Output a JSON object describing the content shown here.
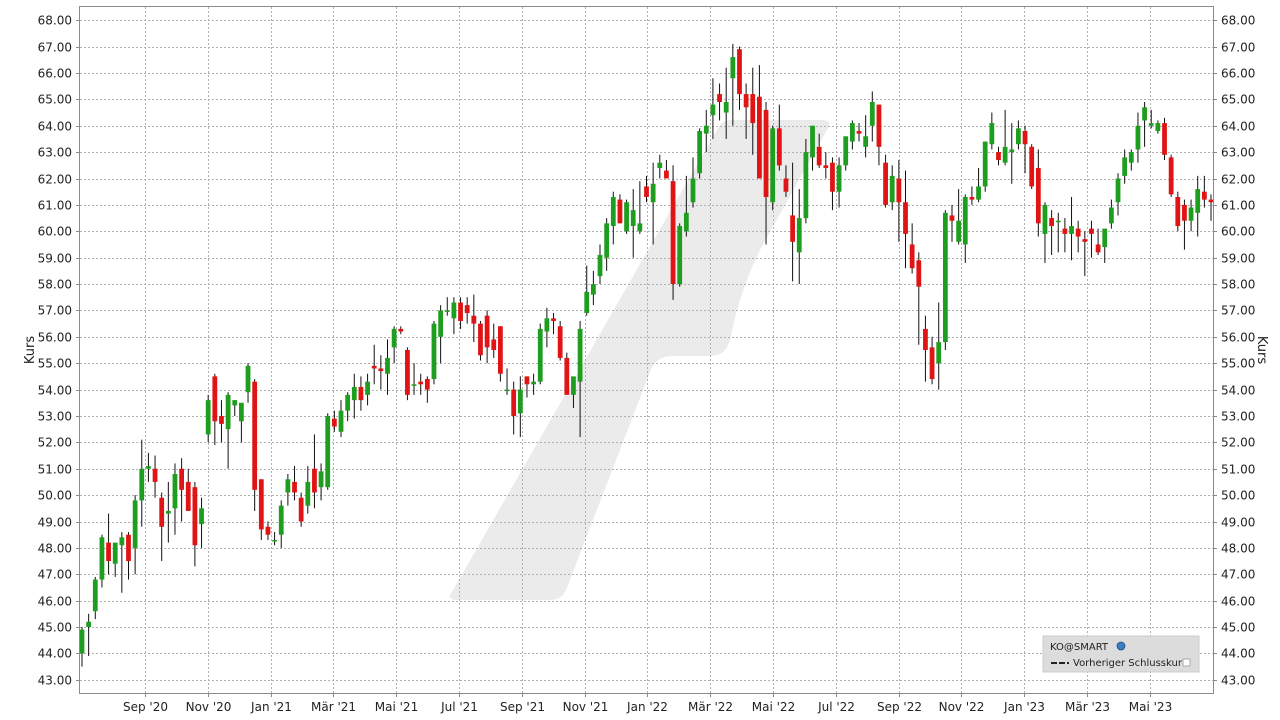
{
  "chart_data": {
    "type": "candlestick",
    "ylabel": "Kurs",
    "ylim": [
      42.5,
      68.5
    ],
    "y_ticks": [
      "43.00",
      "44.00",
      "45.00",
      "46.00",
      "47.00",
      "48.00",
      "49.00",
      "50.00",
      "51.00",
      "52.00",
      "53.00",
      "54.00",
      "55.00",
      "56.00",
      "57.00",
      "58.00",
      "59.00",
      "60.00",
      "61.00",
      "62.00",
      "63.00",
      "64.00",
      "65.00",
      "66.00",
      "67.00",
      "68.00"
    ],
    "x_ticks": [
      "Sep '20",
      "Nov '20",
      "Jan '21",
      "Mär '21",
      "Mai '21",
      "Jul '21",
      "Sep '21",
      "Nov '21",
      "Jan '22",
      "Mär '22",
      "Mai '22",
      "Jul '22",
      "Sep '22",
      "Nov '22",
      "Jan '23",
      "Mär '23",
      "Mai '23"
    ],
    "grid": true,
    "legend": {
      "position": "bottom-right",
      "symbol": "KO@SMART",
      "prev_close_label": "Vorheriger Schlusskurs"
    },
    "colors": {
      "up": "#1e9e1e",
      "down": "#e01414",
      "wick": "#111111"
    },
    "period": "weekly",
    "series": [
      [
        44.0,
        45.0,
        43.5,
        44.9
      ],
      [
        45.0,
        45.5,
        43.9,
        45.2
      ],
      [
        45.6,
        46.9,
        45.3,
        46.8
      ],
      [
        46.8,
        48.5,
        46.5,
        48.4
      ],
      [
        48.2,
        49.3,
        47.0,
        47.5
      ],
      [
        47.4,
        48.0,
        46.9,
        48.2
      ],
      [
        48.1,
        48.6,
        46.3,
        48.4
      ],
      [
        48.5,
        48.6,
        46.8,
        47.5
      ],
      [
        48.0,
        50.0,
        47.0,
        49.8
      ],
      [
        49.8,
        52.1,
        48.8,
        51.0
      ],
      [
        51.0,
        51.6,
        50.5,
        51.1
      ],
      [
        51.0,
        51.5,
        49.9,
        50.5
      ],
      [
        49.9,
        50.1,
        47.5,
        48.8
      ],
      [
        49.3,
        50.5,
        48.2,
        49.4
      ],
      [
        49.5,
        51.2,
        48.5,
        50.8
      ],
      [
        51.0,
        51.4,
        49.0,
        50.2
      ],
      [
        50.5,
        51.0,
        49.5,
        49.4
      ],
      [
        50.3,
        50.5,
        47.3,
        48.1
      ],
      [
        48.9,
        49.9,
        48.0,
        49.5
      ],
      [
        52.3,
        53.8,
        52.0,
        53.6
      ],
      [
        54.5,
        54.6,
        51.9,
        52.8
      ],
      [
        53.0,
        53.6,
        52.0,
        52.7
      ],
      [
        52.5,
        53.9,
        51.0,
        53.8
      ],
      [
        53.4,
        53.6,
        53.0,
        53.6
      ],
      [
        52.8,
        53.3,
        52.0,
        53.5
      ],
      [
        53.9,
        55.0,
        53.5,
        54.9
      ],
      [
        54.3,
        54.4,
        49.4,
        50.2
      ],
      [
        50.6,
        50.6,
        48.3,
        48.7
      ],
      [
        48.8,
        49.0,
        48.3,
        48.5
      ],
      [
        48.3,
        48.6,
        48.1,
        48.3
      ],
      [
        48.5,
        49.8,
        48.0,
        49.6
      ],
      [
        50.1,
        50.8,
        49.6,
        50.6
      ],
      [
        50.5,
        51.1,
        49.8,
        50.1
      ],
      [
        49.9,
        50.1,
        48.8,
        49.0
      ],
      [
        49.6,
        51.1,
        49.3,
        50.5
      ],
      [
        51.0,
        52.3,
        49.5,
        50.1
      ],
      [
        50.3,
        51.2,
        49.8,
        50.9
      ],
      [
        50.3,
        53.1,
        50.2,
        53.0
      ],
      [
        52.9,
        53.2,
        52.4,
        52.6
      ],
      [
        52.4,
        53.6,
        52.2,
        53.2
      ],
      [
        53.2,
        53.9,
        52.8,
        53.8
      ],
      [
        53.6,
        54.6,
        52.9,
        54.1
      ],
      [
        54.1,
        54.5,
        53.2,
        53.6
      ],
      [
        53.8,
        54.6,
        53.4,
        54.3
      ],
      [
        54.9,
        55.7,
        54.2,
        54.8
      ],
      [
        54.8,
        55.3,
        54.0,
        54.7
      ],
      [
        54.6,
        55.9,
        53.8,
        55.2
      ],
      [
        55.6,
        56.4,
        55.0,
        56.3
      ],
      [
        56.3,
        56.4,
        56.1,
        56.2
      ],
      [
        55.5,
        55.6,
        53.6,
        53.8
      ],
      [
        54.2,
        55.0,
        53.8,
        54.2
      ],
      [
        54.3,
        54.6,
        53.8,
        54.2
      ],
      [
        54.4,
        54.5,
        53.5,
        54.0
      ],
      [
        54.4,
        56.6,
        54.2,
        56.5
      ],
      [
        56.0,
        57.2,
        55.0,
        57.0
      ],
      [
        57.0,
        57.5,
        56.8,
        57.0
      ],
      [
        56.7,
        57.5,
        56.1,
        57.3
      ],
      [
        57.3,
        57.5,
        56.3,
        56.6
      ],
      [
        57.2,
        57.5,
        56.5,
        56.9
      ],
      [
        56.8,
        57.6,
        55.8,
        56.5
      ],
      [
        56.5,
        56.6,
        55.1,
        55.3
      ],
      [
        56.8,
        57.0,
        55.0,
        55.6
      ],
      [
        55.9,
        56.5,
        55.2,
        55.5
      ],
      [
        56.4,
        56.4,
        54.3,
        54.6
      ],
      [
        54.0,
        54.8,
        53.8,
        54.0
      ],
      [
        54.0,
        54.3,
        52.3,
        53.0
      ],
      [
        53.1,
        54.5,
        52.2,
        54.0
      ],
      [
        54.5,
        54.5,
        53.7,
        54.2
      ],
      [
        54.2,
        54.6,
        53.8,
        54.3
      ],
      [
        54.3,
        56.5,
        54.2,
        56.3
      ],
      [
        56.2,
        57.1,
        55.6,
        56.7
      ],
      [
        56.7,
        56.9,
        56.1,
        56.6
      ],
      [
        56.4,
        56.6,
        55.1,
        55.2
      ],
      [
        55.2,
        55.4,
        54.1,
        53.8
      ],
      [
        53.8,
        54.1,
        53.3,
        54.5
      ],
      [
        54.3,
        56.6,
        52.2,
        56.3
      ],
      [
        56.9,
        58.7,
        56.8,
        57.7
      ],
      [
        57.6,
        58.5,
        57.2,
        58.0
      ],
      [
        58.3,
        59.5,
        58.0,
        59.1
      ],
      [
        59.0,
        60.5,
        58.5,
        60.3
      ],
      [
        60.2,
        61.5,
        59.5,
        61.3
      ],
      [
        61.2,
        61.4,
        60.4,
        60.3
      ],
      [
        60.0,
        61.2,
        59.9,
        61.1
      ],
      [
        60.2,
        61.6,
        59.0,
        60.8
      ],
      [
        60.0,
        61.9,
        59.9,
        60.3
      ],
      [
        61.7,
        62.1,
        61.1,
        61.3
      ],
      [
        61.1,
        62.6,
        59.5,
        61.8
      ],
      [
        62.4,
        62.9,
        62.0,
        62.6
      ],
      [
        62.3,
        62.7,
        62.0,
        62.0
      ],
      [
        61.9,
        62.5,
        57.4,
        58.0
      ],
      [
        58.0,
        60.3,
        57.9,
        60.2
      ],
      [
        60.0,
        62.1,
        59.8,
        60.7
      ],
      [
        61.1,
        62.8,
        60.9,
        62.0
      ],
      [
        62.2,
        63.9,
        62.0,
        63.8
      ],
      [
        63.7,
        64.6,
        63.0,
        64.0
      ],
      [
        64.4,
        65.8,
        63.5,
        64.8
      ],
      [
        65.2,
        65.6,
        64.2,
        64.9
      ],
      [
        64.5,
        66.2,
        63.5,
        64.9
      ],
      [
        65.8,
        67.1,
        64.0,
        66.6
      ],
      [
        66.9,
        67.0,
        64.6,
        65.2
      ],
      [
        65.2,
        65.6,
        63.5,
        64.7
      ],
      [
        65.2,
        66.2,
        62.9,
        64.1
      ],
      [
        65.1,
        66.3,
        63.1,
        62.0
      ],
      [
        64.6,
        64.9,
        59.5,
        61.3
      ],
      [
        61.1,
        64.0,
        60.8,
        63.9
      ],
      [
        63.9,
        64.8,
        62.3,
        62.5
      ],
      [
        62.0,
        62.5,
        61.3,
        61.5
      ],
      [
        60.6,
        62.6,
        58.1,
        59.6
      ],
      [
        59.2,
        61.6,
        58.0,
        60.5
      ],
      [
        60.5,
        63.5,
        60.3,
        63.0
      ],
      [
        62.8,
        64.0,
        62.3,
        64.0
      ],
      [
        63.2,
        63.7,
        62.4,
        62.5
      ],
      [
        62.5,
        63.0,
        62.0,
        62.4
      ],
      [
        62.6,
        62.8,
        60.8,
        61.5
      ],
      [
        61.5,
        62.8,
        60.9,
        62.5
      ],
      [
        62.5,
        63.5,
        62.3,
        63.6
      ],
      [
        63.4,
        64.2,
        63.1,
        64.1
      ],
      [
        63.8,
        64.1,
        63.4,
        63.7
      ],
      [
        63.2,
        64.4,
        62.8,
        63.6
      ],
      [
        64.0,
        65.3,
        63.4,
        64.9
      ],
      [
        64.8,
        64.8,
        62.5,
        63.2
      ],
      [
        62.6,
        62.9,
        60.9,
        61.0
      ],
      [
        61.1,
        62.5,
        60.8,
        62.1
      ],
      [
        62.0,
        62.7,
        59.6,
        61.1
      ],
      [
        61.1,
        62.3,
        58.6,
        59.9
      ],
      [
        59.5,
        60.3,
        58.4,
        58.6
      ],
      [
        58.9,
        59.2,
        55.7,
        57.9
      ],
      [
        56.3,
        56.8,
        54.3,
        55.5
      ],
      [
        55.6,
        56.0,
        54.2,
        54.4
      ],
      [
        55.0,
        57.3,
        54.0,
        55.8
      ],
      [
        55.8,
        60.8,
        55.5,
        60.7
      ],
      [
        60.6,
        61.0,
        59.6,
        60.4
      ],
      [
        59.6,
        61.6,
        59.5,
        60.4
      ],
      [
        59.5,
        61.4,
        58.8,
        61.3
      ],
      [
        61.3,
        61.7,
        61.0,
        61.2
      ],
      [
        61.2,
        62.4,
        61.1,
        61.7
      ],
      [
        61.7,
        63.4,
        61.5,
        63.4
      ],
      [
        63.3,
        64.5,
        63.1,
        64.1
      ],
      [
        63.0,
        63.2,
        62.5,
        62.7
      ],
      [
        62.6,
        64.6,
        62.5,
        63.2
      ],
      [
        63.0,
        64.1,
        61.8,
        63.1
      ],
      [
        63.3,
        64.2,
        63.1,
        63.9
      ],
      [
        63.8,
        64.0,
        62.2,
        63.3
      ],
      [
        63.2,
        63.3,
        61.6,
        61.7
      ],
      [
        62.4,
        63.1,
        59.8,
        60.3
      ],
      [
        59.9,
        61.1,
        58.8,
        61.0
      ],
      [
        60.5,
        60.8,
        59.1,
        60.2
      ],
      [
        60.4,
        60.7,
        59.2,
        60.4
      ],
      [
        60.1,
        60.5,
        59.2,
        59.9
      ],
      [
        59.9,
        61.3,
        58.9,
        60.2
      ],
      [
        60.1,
        60.4,
        59.2,
        59.8
      ],
      [
        59.7,
        60.0,
        58.3,
        59.6
      ],
      [
        60.1,
        60.4,
        59.0,
        59.9
      ],
      [
        59.5,
        60.1,
        59.1,
        59.2
      ],
      [
        59.4,
        60.0,
        58.8,
        60.1
      ],
      [
        60.3,
        61.2,
        60.1,
        60.9
      ],
      [
        61.1,
        62.2,
        60.6,
        62.0
      ],
      [
        62.1,
        63.1,
        61.8,
        62.8
      ],
      [
        62.6,
        63.1,
        62.3,
        63.0
      ],
      [
        63.1,
        64.5,
        62.6,
        64.0
      ],
      [
        64.2,
        64.9,
        63.2,
        64.7
      ],
      [
        64.0,
        64.6,
        63.9,
        64.1
      ],
      [
        63.8,
        64.2,
        63.7,
        64.1
      ],
      [
        64.1,
        64.3,
        62.7,
        62.9
      ],
      [
        62.8,
        62.9,
        61.3,
        61.4
      ],
      [
        61.3,
        61.5,
        60.0,
        60.2
      ],
      [
        61.0,
        61.2,
        59.3,
        60.4
      ],
      [
        60.4,
        61.2,
        60.0,
        60.9
      ],
      [
        60.7,
        62.1,
        59.8,
        61.6
      ],
      [
        61.5,
        62.1,
        60.9,
        61.2
      ],
      [
        61.2,
        61.4,
        60.4,
        61.1
      ]
    ]
  }
}
